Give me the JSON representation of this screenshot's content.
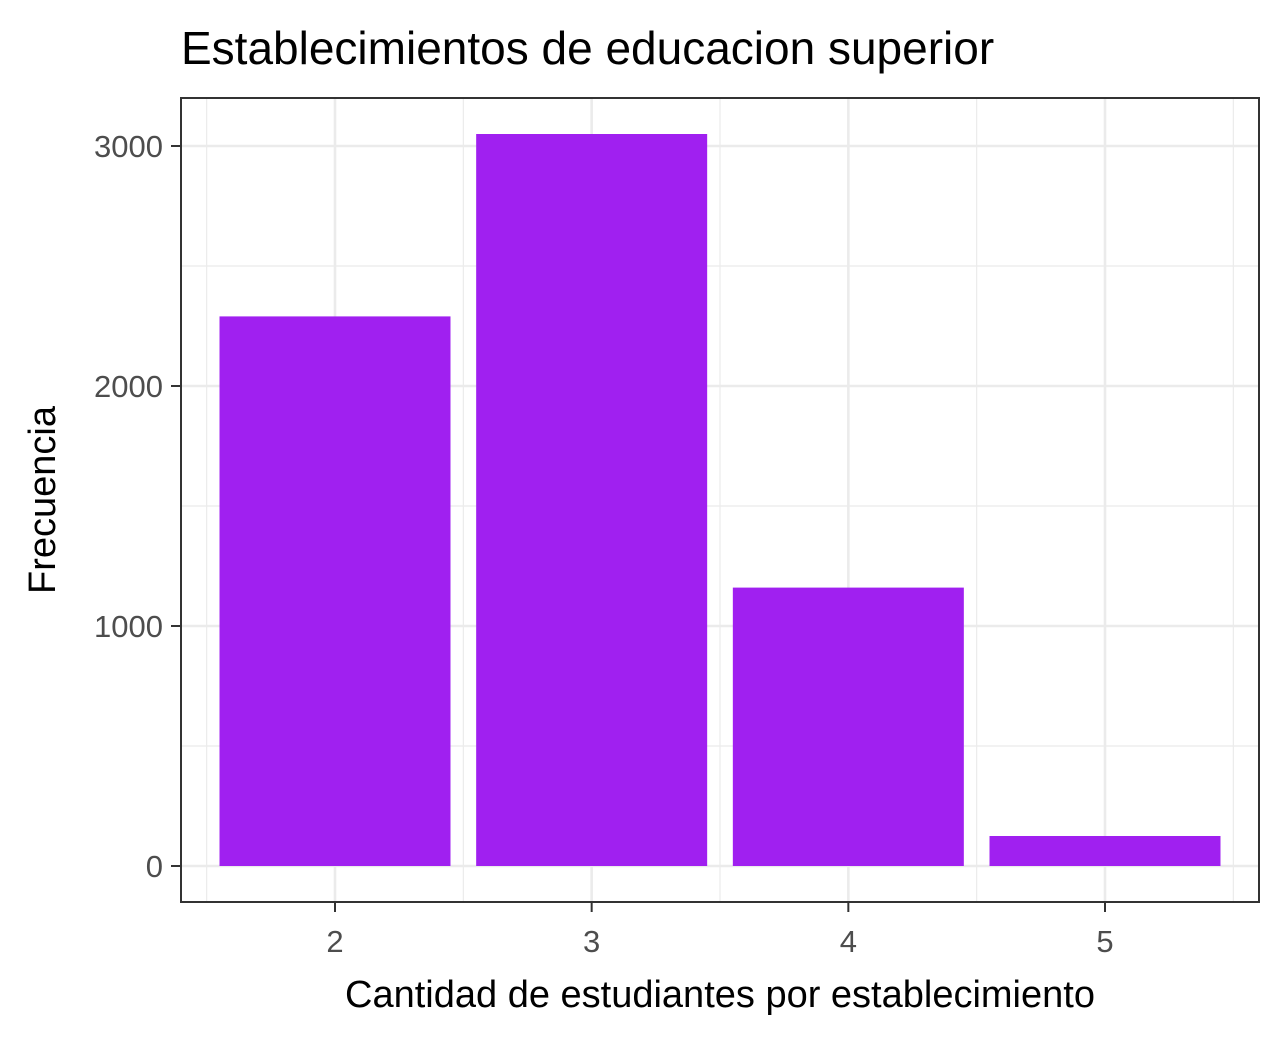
{
  "chart_data": {
    "type": "bar",
    "title": "Establecimientos de educacion superior",
    "xlabel": "Cantidad de estudiantes por establecimiento",
    "ylabel": "Frecuencia",
    "categories": [
      "2",
      "3",
      "4",
      "5"
    ],
    "values": [
      2290,
      3050,
      1160,
      125
    ],
    "ylim": [
      -150,
      3200
    ],
    "yticks": [
      0,
      1000,
      2000,
      3000
    ],
    "grid": true,
    "legend": "none",
    "bar_color": "#A020F0",
    "grid_color": "#EBEBEB",
    "panel_border_color": "#333333",
    "tick_label_color": "#4D4D4D"
  }
}
